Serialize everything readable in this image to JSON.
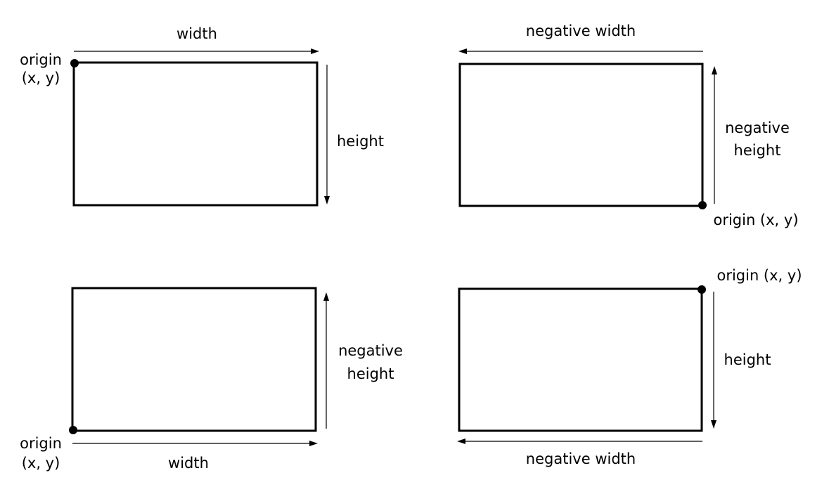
{
  "panels": [
    {
      "width_label": "width",
      "height_label": "height",
      "origin_label_line1": "origin",
      "origin_label_line2": "(x, y)"
    },
    {
      "width_label": "negative width",
      "height_label_line1": "negative",
      "height_label_line2": "height",
      "origin_label": "origin (x, y)"
    },
    {
      "width_label": "width",
      "height_label_line1": "negative",
      "height_label_line2": "height",
      "origin_label_line1": "origin",
      "origin_label_line2": "(x, y)"
    },
    {
      "width_label": "negative width",
      "height_label": "height",
      "origin_label": "origin (x, y)"
    }
  ]
}
